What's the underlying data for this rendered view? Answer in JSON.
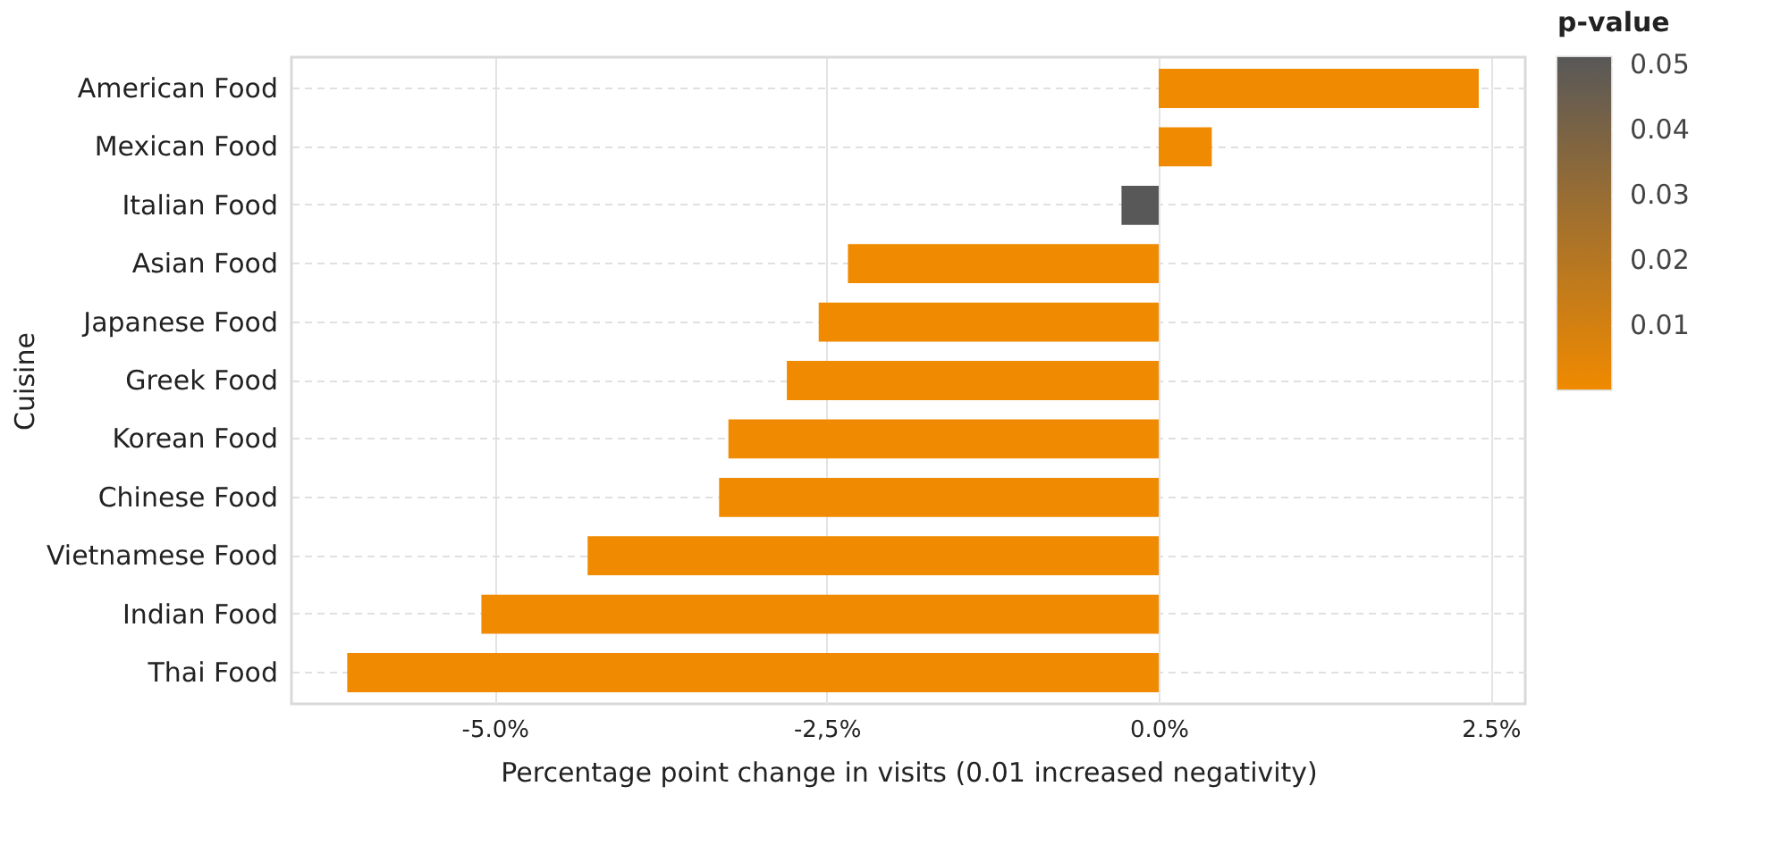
{
  "chart_data": {
    "type": "bar",
    "orientation": "horizontal",
    "xlabel": "Percentage point change in visits (0.01 increased negativity)",
    "ylabel": "Cuisine",
    "categories": [
      "American Food",
      "Mexican Food",
      "Italian Food",
      "Asian Food",
      "Japanese Food",
      "Greek Food",
      "Korean Food",
      "Chinese Food",
      "Vietnamese Food",
      "Indian Food",
      "Thai Food"
    ],
    "values": [
      2.41,
      0.4,
      -0.28,
      -2.34,
      -2.56,
      -2.8,
      -3.24,
      -3.31,
      -4.3,
      -5.1,
      -6.11
    ],
    "colors": [
      "#f08a00",
      "#f08a00",
      "#585858",
      "#f08a00",
      "#f08a00",
      "#f08a00",
      "#f08a00",
      "#f08a00",
      "#f08a00",
      "#f08a00",
      "#f08a00"
    ],
    "xlim": [
      -6.53,
      2.76
    ],
    "xticks": [
      {
        "value": -5,
        "label": "-5.0%"
      },
      {
        "value": -2.5,
        "label": "-2,5%"
      },
      {
        "value": 0,
        "label": "0.0%"
      },
      {
        "value": 2.5,
        "label": "2.5%"
      }
    ],
    "clabel": "p-value",
    "clim": [
      0,
      0.051
    ],
    "cticks": [
      0.01,
      0.02,
      0.03,
      0.04,
      0.05
    ],
    "grid": true
  }
}
